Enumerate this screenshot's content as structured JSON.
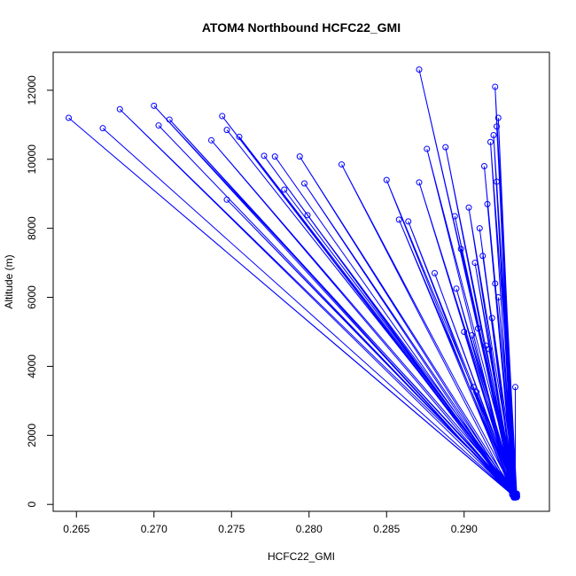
{
  "chart_data": {
    "type": "line",
    "title": "ATOM4 Northbound HCFC22_GMI",
    "xlabel": "HCFC22_GMI",
    "ylabel": "Altitude (m)",
    "xlim": [
      0.2635,
      0.2955
    ],
    "ylim": [
      -200,
      13100
    ],
    "xticks": [
      0.265,
      0.27,
      0.275,
      0.28,
      0.285,
      0.29
    ],
    "xtick_labels": [
      "0.265",
      "0.270",
      "0.275",
      "0.280",
      "0.285",
      "0.290"
    ],
    "yticks": [
      0,
      2000,
      4000,
      6000,
      8000,
      10000,
      12000
    ],
    "ytick_labels": [
      "0",
      "2000",
      "4000",
      "6000",
      "8000",
      "10000",
      "12000"
    ],
    "grid": false,
    "series": [
      {
        "color": "#0000ff",
        "marker": "open-circle",
        "x": [
          0.2933,
          0.2645,
          0.2932,
          0.2678,
          0.2933,
          0.27,
          0.2932,
          0.271,
          0.2933,
          0.2744,
          0.2931,
          0.2667,
          0.2933,
          0.2703,
          0.2932,
          0.2737,
          0.2933,
          0.2747,
          0.2934,
          0.2755,
          0.2931,
          0.2771,
          0.2933,
          0.2778,
          0.2932,
          0.2794,
          0.2933,
          0.2821,
          0.2932,
          0.2797,
          0.2933,
          0.2784,
          0.2932,
          0.2747,
          0.2933,
          0.2799,
          0.2934,
          0.285,
          0.2932,
          0.2858,
          0.2933,
          0.2871,
          0.2934,
          0.2876,
          0.2932,
          0.2888,
          0.2933,
          0.2871,
          0.2934,
          0.2864,
          0.2932,
          0.2894,
          0.2933,
          0.2881,
          0.2934,
          0.2895,
          0.2932,
          0.29,
          0.2933,
          0.2905,
          0.2932,
          0.2908,
          0.2934,
          0.2912,
          0.2933,
          0.2915,
          0.2932,
          0.2919,
          0.2934,
          0.292,
          0.2932,
          0.2922,
          0.2933,
          0.2921,
          0.2934,
          0.2917,
          0.2932,
          0.2913,
          0.2933,
          0.291,
          0.2932,
          0.2907,
          0.2933,
          0.2922,
          0.2934,
          0.2918,
          0.2932,
          0.2914,
          0.2933,
          0.2909,
          0.2932,
          0.292,
          0.2933,
          0.2898,
          0.2934,
          0.2903,
          0.2932,
          0.2906,
          0.2933,
          0.2921,
          0.2932,
          0.2916,
          0.2933,
          0.2933
        ],
        "y": [
          200,
          11200,
          250,
          11450,
          300,
          11550,
          200,
          11150,
          250,
          11250,
          300,
          10900,
          220,
          10980,
          260,
          10550,
          310,
          10850,
          240,
          10650,
          280,
          10100,
          200,
          10080,
          260,
          10080,
          300,
          9850,
          220,
          9300,
          270,
          9120,
          310,
          8830,
          230,
          8380,
          280,
          9400,
          210,
          8250,
          260,
          9330,
          300,
          10300,
          240,
          10350,
          290,
          12600,
          210,
          8200,
          250,
          8350,
          300,
          6700,
          230,
          6250,
          280,
          5000,
          220,
          4900,
          270,
          3250,
          310,
          7200,
          230,
          8700,
          280,
          10700,
          210,
          12100,
          260,
          11200,
          300,
          10950,
          240,
          10500,
          290,
          9800,
          220,
          8000,
          270,
          7000,
          310,
          6000,
          230,
          5400,
          280,
          4600,
          210,
          5100,
          260,
          6400,
          300,
          7400,
          240,
          8600,
          290,
          3400,
          220,
          9350,
          270,
          4500,
          310,
          3400
        ]
      }
    ]
  }
}
